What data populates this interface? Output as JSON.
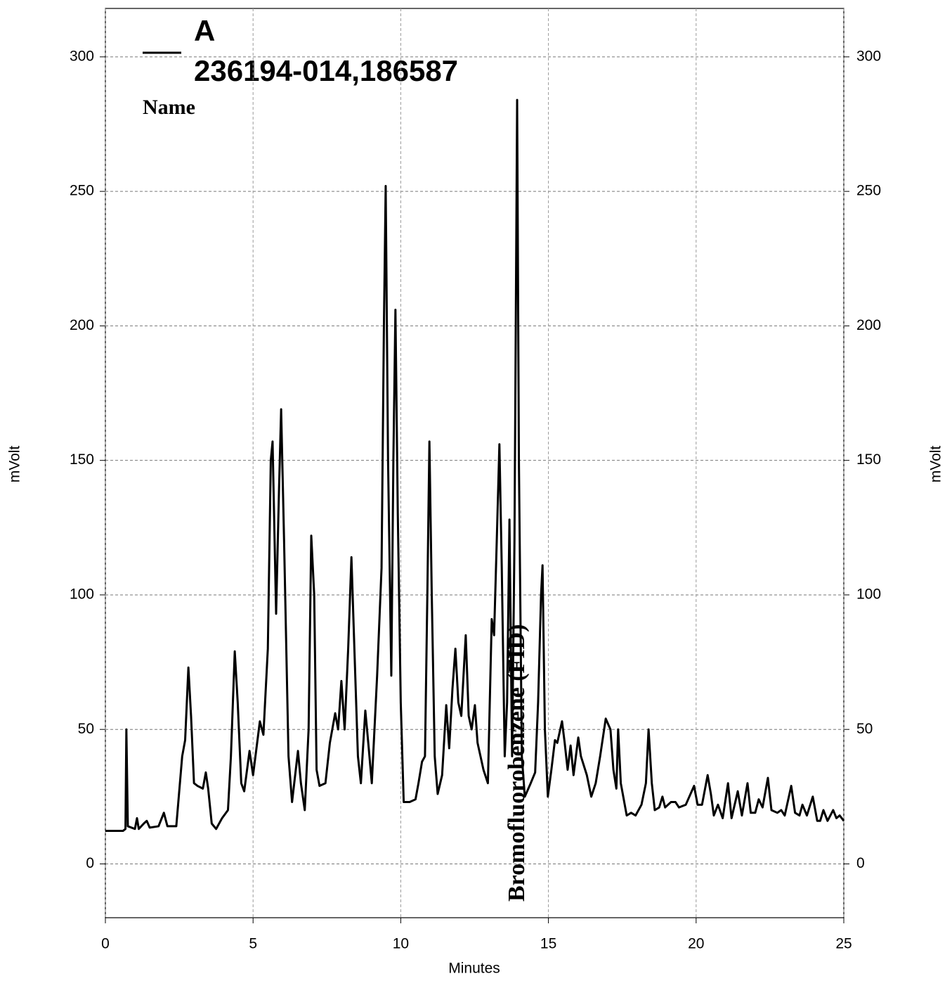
{
  "chart_data": {
    "type": "line",
    "legend_title": "Name",
    "x_label": "Minutes",
    "y_label": "mVolt",
    "annotations": [
      {
        "text": "Bromofluorobenzene (FID)"
      }
    ],
    "xlim": [
      0,
      25
    ],
    "xticks": [
      0,
      5,
      10,
      15,
      20,
      25
    ],
    "ylim": [
      -20,
      318
    ],
    "yticks": [
      0,
      50,
      100,
      150,
      200,
      250,
      300
    ],
    "grid": true,
    "x": [
      0,
      0.6,
      0.68,
      0.71,
      0.76,
      1.0,
      1.07,
      1.13,
      1.3,
      1.4,
      1.5,
      1.8,
      1.98,
      2.1,
      2.4,
      2.6,
      2.7,
      2.81,
      2.9,
      3.0,
      3.12,
      3.3,
      3.4,
      3.48,
      3.6,
      3.75,
      3.95,
      4.15,
      4.25,
      4.38,
      4.48,
      4.6,
      4.7,
      4.88,
      5.0,
      5.23,
      5.35,
      5.5,
      5.6,
      5.66,
      5.78,
      5.88,
      5.95,
      6.05,
      6.2,
      6.32,
      6.52,
      6.62,
      6.75,
      6.88,
      6.97,
      7.07,
      7.15,
      7.25,
      7.45,
      7.6,
      7.78,
      7.88,
      7.99,
      8.1,
      8.22,
      8.33,
      8.43,
      8.55,
      8.65,
      8.8,
      8.9,
      9.02,
      9.2,
      9.35,
      9.43,
      9.49,
      9.57,
      9.68,
      9.75,
      9.82,
      9.9,
      10.0,
      10.1,
      10.3,
      10.5,
      10.6,
      10.72,
      10.82,
      10.9,
      10.97,
      11.05,
      11.15,
      11.25,
      11.4,
      11.54,
      11.64,
      11.75,
      11.85,
      11.95,
      12.05,
      12.2,
      12.3,
      12.4,
      12.51,
      12.6,
      12.8,
      12.95,
      13.08,
      13.16,
      13.25,
      13.34,
      13.42,
      13.52,
      13.6,
      13.68,
      13.77,
      13.85,
      13.94,
      14.0,
      14.1,
      14.2,
      14.4,
      14.55,
      14.65,
      14.75,
      14.8,
      14.88,
      14.98,
      15.1,
      15.22,
      15.3,
      15.46,
      15.55,
      15.65,
      15.75,
      15.85,
      16.01,
      16.1,
      16.3,
      16.45,
      16.6,
      16.75,
      16.94,
      17.1,
      17.2,
      17.3,
      17.36,
      17.45,
      17.65,
      17.8,
      17.95,
      18.15,
      18.3,
      18.39,
      18.5,
      18.6,
      18.75,
      18.86,
      18.95,
      19.15,
      19.3,
      19.42,
      19.65,
      19.93,
      20.05,
      20.2,
      20.39,
      20.5,
      20.6,
      20.74,
      20.9,
      21.08,
      21.2,
      21.41,
      21.55,
      21.74,
      21.85,
      22.0,
      22.12,
      22.25,
      22.43,
      22.55,
      22.75,
      22.88,
      23.0,
      23.22,
      23.35,
      23.5,
      23.6,
      23.75,
      23.95,
      24.1,
      24.2,
      24.31,
      24.45,
      24.64,
      24.75,
      24.86,
      25
    ],
    "series": [
      {
        "name": "A",
        "sample": "236194-014,186587",
        "color": "#000000",
        "values": [
          12.3,
          12.3,
          13,
          50,
          14,
          13,
          17,
          13,
          15,
          16,
          13.5,
          14,
          19,
          14,
          14,
          40,
          46,
          73,
          55,
          30,
          29,
          28,
          34,
          28,
          15,
          13,
          17,
          20,
          40,
          79,
          60,
          30,
          27,
          42,
          33,
          53,
          48,
          80,
          150,
          157,
          93,
          140,
          169,
          120,
          40,
          23,
          42,
          30,
          20,
          50,
          122,
          100,
          35,
          29,
          30,
          45,
          56,
          50,
          68,
          50,
          80,
          114,
          80,
          40,
          30,
          57,
          45,
          30,
          70,
          110,
          200,
          252,
          150,
          70,
          150,
          206,
          130,
          60,
          23,
          23,
          24,
          30,
          38,
          40,
          100,
          157,
          100,
          40,
          26,
          33,
          59,
          43,
          65,
          80,
          60,
          55,
          85,
          55,
          50,
          59,
          45,
          35,
          30,
          91,
          85,
          120,
          156,
          110,
          40,
          60,
          128,
          40,
          120,
          284,
          150,
          40,
          25,
          30,
          34,
          60,
          100,
          111,
          50,
          25,
          35,
          46,
          45,
          53,
          45,
          35,
          44,
          33,
          47,
          40,
          33,
          25,
          30,
          40,
          54,
          50,
          35,
          28,
          50,
          30,
          18,
          19,
          18,
          22,
          30,
          50,
          30,
          20,
          21,
          25,
          21,
          23,
          23,
          21,
          22,
          29,
          22,
          22,
          33,
          26,
          18,
          22,
          17,
          30,
          17,
          27,
          18,
          30,
          19,
          19,
          24,
          21,
          32,
          20,
          19,
          20,
          18,
          29,
          19,
          18,
          22,
          18,
          25,
          16,
          16,
          20,
          16,
          20,
          17,
          18,
          16
        ]
      }
    ]
  }
}
